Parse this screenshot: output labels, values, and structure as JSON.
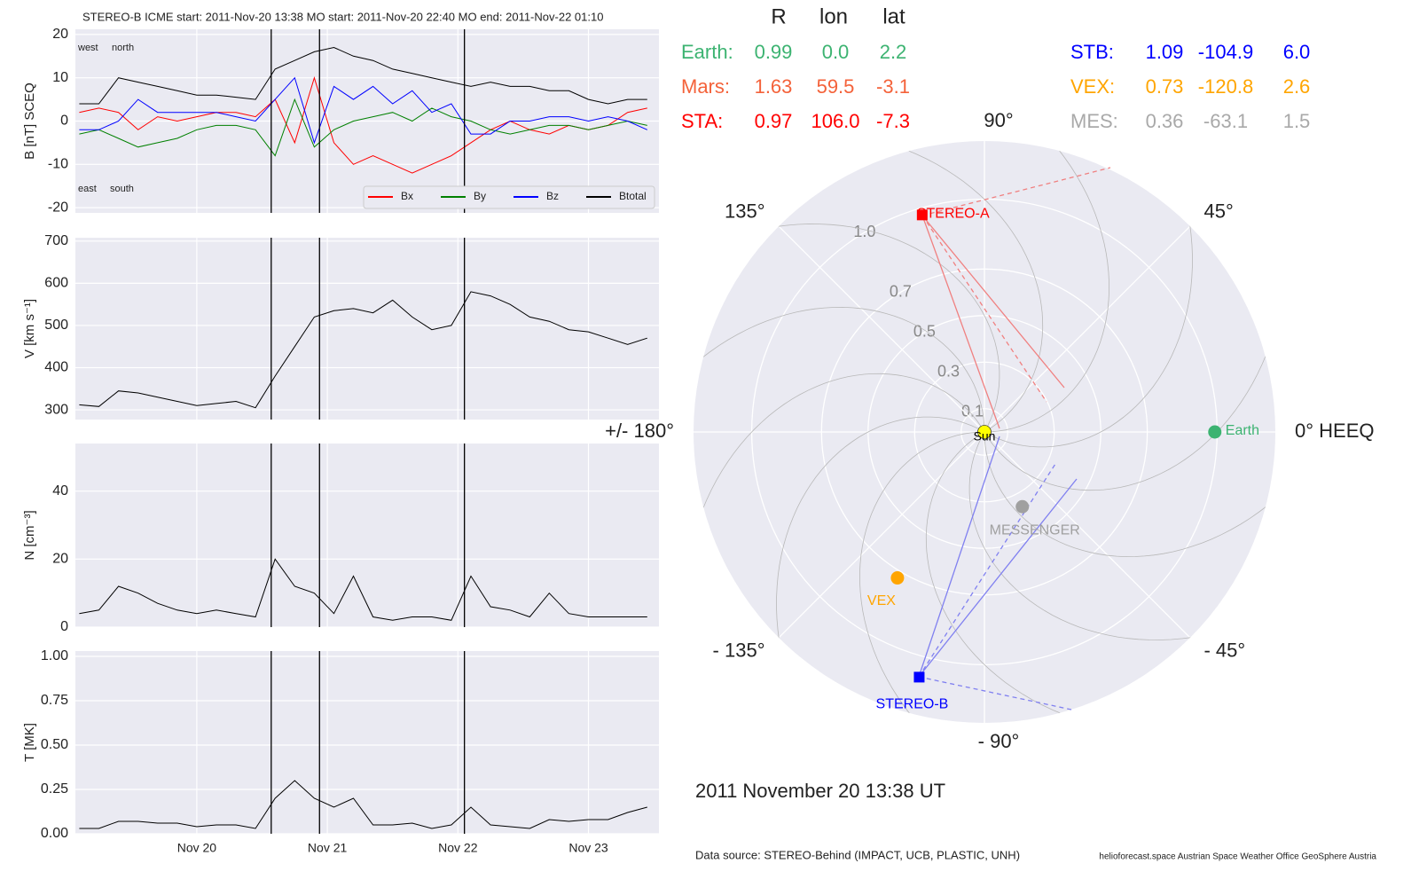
{
  "chart_data": [
    {
      "type": "line",
      "title": "STEREO-B    ICME start: 2011-Nov-20 13:38    MO start: 2011-Nov-20 22:40    MO end: 2011-Nov-22 01:10",
      "ylabel": "B [nT] SCEQ",
      "annotations": [
        "west",
        "north",
        "east",
        "south"
      ],
      "event_x": [
        20.57,
        20.94,
        22.05
      ],
      "x": [
        19.1,
        19.25,
        19.4,
        19.55,
        19.7,
        19.85,
        20.0,
        20.15,
        20.3,
        20.45,
        20.6,
        20.75,
        20.9,
        21.05,
        21.2,
        21.35,
        21.5,
        21.65,
        21.8,
        21.95,
        22.1,
        22.25,
        22.4,
        22.55,
        22.7,
        22.85,
        23.0,
        23.15,
        23.3,
        23.45
      ],
      "xlim": [
        19.07,
        23.54
      ],
      "ylim": [
        -21.2,
        21.2
      ],
      "yticks": [
        -20,
        -10,
        0,
        10,
        20
      ],
      "grid": true,
      "legend": "lower right",
      "series": [
        {
          "name": "Bx",
          "color": "#ff0000",
          "values": [
            2,
            3,
            2,
            -2,
            1,
            0,
            1,
            2,
            2,
            1,
            5,
            -5,
            10,
            -5,
            -10,
            -8,
            -10,
            -12,
            -10,
            -8,
            -5,
            -2,
            0,
            -2,
            -3,
            -1,
            -2,
            -1,
            2,
            3
          ]
        },
        {
          "name": "By",
          "color": "#008000",
          "values": [
            -3,
            -2,
            -4,
            -6,
            -5,
            -4,
            -2,
            -1,
            -1,
            -2,
            -8,
            5,
            -6,
            -2,
            0,
            1,
            2,
            0,
            3,
            1,
            0,
            -2,
            -3,
            -2,
            -1,
            -1,
            -2,
            -1,
            0,
            -1
          ]
        },
        {
          "name": "Bz",
          "color": "#0000ff",
          "values": [
            -2,
            -2,
            0,
            5,
            2,
            2,
            2,
            2,
            1,
            0,
            5,
            10,
            -5,
            8,
            5,
            8,
            4,
            7,
            2,
            4,
            -3,
            -3,
            0,
            0,
            1,
            1,
            0,
            1,
            0,
            -2
          ]
        },
        {
          "name": "Btotal",
          "color": "#000000",
          "values": [
            4,
            4,
            10,
            9,
            8,
            7,
            6,
            6,
            5.5,
            5,
            12,
            14,
            16,
            17,
            15,
            14,
            12,
            11,
            10,
            9,
            8,
            9,
            8,
            8,
            7,
            7,
            5,
            4,
            5,
            5
          ]
        }
      ]
    },
    {
      "type": "line",
      "ylabel": "V [km s⁻¹]",
      "x": [
        19.1,
        19.25,
        19.4,
        19.55,
        19.7,
        19.85,
        20.0,
        20.15,
        20.3,
        20.45,
        20.6,
        20.75,
        20.9,
        21.05,
        21.2,
        21.35,
        21.5,
        21.65,
        21.8,
        21.95,
        22.1,
        22.25,
        22.4,
        22.55,
        22.7,
        22.85,
        23.0,
        23.15,
        23.3,
        23.45
      ],
      "xlim": [
        19.07,
        23.54
      ],
      "ylim": [
        277,
        708
      ],
      "yticks": [
        300,
        400,
        500,
        600,
        700
      ],
      "grid": true,
      "series": [
        {
          "color": "#000000",
          "values": [
            312,
            308,
            345,
            340,
            330,
            320,
            310,
            315,
            320,
            305,
            380,
            450,
            520,
            535,
            540,
            530,
            560,
            520,
            490,
            500,
            580,
            570,
            550,
            520,
            510,
            490,
            485,
            470,
            455,
            470
          ]
        }
      ]
    },
    {
      "type": "line",
      "ylabel": "N [cm⁻³]",
      "x": [
        19.1,
        19.25,
        19.4,
        19.55,
        19.7,
        19.85,
        20.0,
        20.15,
        20.3,
        20.45,
        20.6,
        20.75,
        20.9,
        21.05,
        21.2,
        21.35,
        21.5,
        21.65,
        21.8,
        21.95,
        22.1,
        22.25,
        22.4,
        22.55,
        22.7,
        22.85,
        23.0,
        23.15,
        23.3,
        23.45
      ],
      "xlim": [
        19.07,
        23.54
      ],
      "ylim": [
        0,
        54
      ],
      "yticks": [
        0,
        20,
        40
      ],
      "grid": true,
      "series": [
        {
          "color": "#000000",
          "values": [
            4,
            5,
            12,
            10,
            7,
            5,
            4,
            5,
            4,
            3,
            20,
            12,
            10,
            4,
            15,
            3,
            2,
            3,
            3,
            2,
            15,
            6,
            5,
            3,
            10,
            4,
            3,
            3,
            3,
            3
          ]
        }
      ]
    },
    {
      "type": "line",
      "ylabel": "T [MK]",
      "x": [
        19.1,
        19.25,
        19.4,
        19.55,
        19.7,
        19.85,
        20.0,
        20.15,
        20.3,
        20.45,
        20.6,
        20.75,
        20.9,
        21.05,
        21.2,
        21.35,
        21.5,
        21.65,
        21.8,
        21.95,
        22.1,
        22.25,
        22.4,
        22.55,
        22.7,
        22.85,
        23.0,
        23.15,
        23.3,
        23.45
      ],
      "xlim": [
        19.07,
        23.54
      ],
      "ylim": [
        0,
        1.03
      ],
      "yticks": [
        {
          "value": 0,
          "label": "0.00"
        },
        0.25,
        {
          "value": 0.5,
          "label": "0.50"
        },
        0.75,
        {
          "value": 1,
          "label": "1.00"
        }
      ],
      "xticks": [
        {
          "value": 20,
          "label": "Nov 20"
        },
        {
          "value": 21,
          "label": "Nov 21"
        },
        {
          "value": 22,
          "label": "Nov 22"
        },
        {
          "value": 23,
          "label": "Nov 23"
        }
      ],
      "grid": true,
      "series": [
        {
          "color": "#000000",
          "values": [
            0.03,
            0.03,
            0.07,
            0.07,
            0.06,
            0.06,
            0.04,
            0.05,
            0.05,
            0.03,
            0.2,
            0.3,
            0.2,
            0.15,
            0.2,
            0.05,
            0.05,
            0.06,
            0.03,
            0.05,
            0.15,
            0.05,
            0.04,
            0.03,
            0.08,
            0.07,
            0.08,
            0.08,
            0.12,
            0.15
          ]
        }
      ]
    },
    {
      "type": "polar",
      "rlim": [
        0,
        1.25
      ],
      "rticks": [
        0.1,
        0.3,
        0.5,
        0.7,
        {
          "value": 1,
          "label": "1.0"
        }
      ],
      "thetaticks": [
        {
          "value": 0,
          "label": "0° HEEQ"
        },
        {
          "value": 45,
          "label": "45°"
        },
        {
          "value": 90,
          "label": "90°"
        },
        {
          "value": 135,
          "label": "135°"
        },
        {
          "value": 180,
          "label": "+/- 180°"
        },
        {
          "value": -135,
          "label": "- 135°"
        },
        {
          "value": -90,
          "label": "- 90°"
        },
        {
          "value": -45,
          "label": "- 45°"
        }
      ],
      "points": [
        {
          "name": "Sun",
          "r": 0,
          "lon": 0,
          "color": "#ffff00",
          "marker": "circle"
        },
        {
          "name": "STEREO-A",
          "r": 0.97,
          "lon": 106.0,
          "color": "#ff0000",
          "marker": "square"
        },
        {
          "name": "Earth",
          "r": 0.99,
          "lon": 0.0,
          "color": "#3cb371",
          "marker": "circle"
        },
        {
          "name": "VEX",
          "r": 0.73,
          "lon": -120.8,
          "color": "#ffa500",
          "marker": "circle"
        },
        {
          "name": "MESSENGER",
          "r": 0.36,
          "lon": -63.1,
          "color": "#a0a0a0",
          "marker": "circle"
        },
        {
          "name": "STEREO-B",
          "r": 1.09,
          "lon": -104.9,
          "color": "#0000ff",
          "marker": "square"
        }
      ]
    }
  ],
  "positions": {
    "columns": [
      "R",
      "lon",
      "lat"
    ],
    "rows": [
      {
        "name": "Earth:",
        "color": "#3cb371",
        "cells": [
          "0.99",
          "0.0",
          "2.2"
        ]
      },
      {
        "name": "Mars:",
        "color": "#f4623a",
        "cells": [
          "1.63",
          "59.5",
          "-3.1"
        ]
      },
      {
        "name": "STA:",
        "color": "#ff0000",
        "cells": [
          "0.97",
          "106.0",
          "-7.3"
        ]
      },
      {
        "name": "STB:",
        "color": "#0000ff",
        "cells": [
          "1.09",
          "-104.9",
          "6.0"
        ]
      },
      {
        "name": "VEX:",
        "color": "#ffa500",
        "cells": [
          "0.73",
          "-120.8",
          "2.6"
        ]
      },
      {
        "name": "MES:",
        "color": "#a9a9a9",
        "cells": [
          "0.36",
          "-63.1",
          "1.5"
        ]
      }
    ]
  },
  "date": "2011 November 20  13:38 UT",
  "footer": {
    "source": "Data source: STEREO-Behind (IMPACT, UCB, PLASTIC, UNH)",
    "credits": "helioforecast.space   Austrian Space Weather Office   GeoSphere Austria"
  }
}
